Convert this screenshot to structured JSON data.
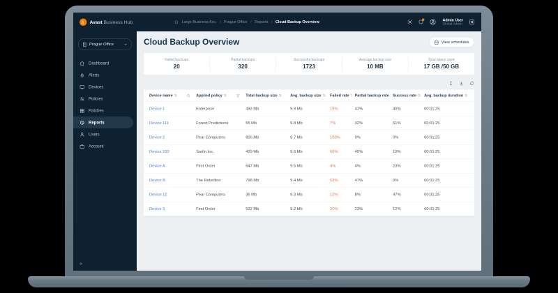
{
  "colors": {
    "navy": "#0d2130",
    "accent_orange": "#ff7800",
    "link_blue": "#4d80d8",
    "failed_rate_orange": "#e7714b",
    "main_bg": "#edf0f2"
  },
  "icons": {
    "sort_glyph": "⇅",
    "collapse_glyph": "«"
  },
  "topbar": {
    "brand_bold": "Avast",
    "brand_rest": "Business Hub",
    "breadcrumb_separator": "/",
    "breadcrumbs": [
      "Large Business Acc.",
      "Prague Office",
      "Reports",
      "Cloud Backup Overview"
    ],
    "user_name": "Admin User",
    "user_role": "Global Admin"
  },
  "sidebar": {
    "selector_value": "Prague Office",
    "items": [
      {
        "label": "Dashboard",
        "icon": "home",
        "active": false
      },
      {
        "label": "Alerts",
        "icon": "bell",
        "active": false
      },
      {
        "label": "Devices",
        "icon": "monitor",
        "active": false
      },
      {
        "label": "Policies",
        "icon": "sliders",
        "active": false
      },
      {
        "label": "Patches",
        "icon": "grid",
        "active": false
      },
      {
        "label": "Reports",
        "icon": "pie-chart",
        "active": true
      },
      {
        "label": "Users",
        "icon": "user",
        "active": false
      },
      {
        "label": "Account",
        "icon": "briefcase",
        "active": false
      }
    ]
  },
  "main": {
    "title": "Cloud Backup Overview",
    "view_schedules_label": "View schedules",
    "stats": [
      {
        "label": "Failed backups",
        "value": "20"
      },
      {
        "label": "Partial backups",
        "value": "320"
      },
      {
        "label": "Successful backups",
        "value": "1723"
      },
      {
        "label": "Average backup size",
        "value": "10 MB"
      },
      {
        "label": "Total space used",
        "value": "17 GB /50 GB"
      }
    ],
    "table": {
      "columns": [
        "Device name",
        "Applied policy",
        "Total backup size",
        "Avg. backup size",
        "Failed rate",
        "Partial backup rate",
        "Success rate",
        "Avg. backup duration"
      ],
      "rows": [
        [
          "Device 1",
          "Enterprise",
          "492 Mb",
          "9.9 Mb",
          "19%",
          "41%",
          "40%",
          "00:01:25"
        ],
        [
          "Device 111",
          "Forest Predictions",
          "55 Mb",
          "9.8 Mb",
          "7%",
          "32%",
          "61%",
          "00:01:25"
        ],
        [
          "Device 2",
          "Pear Computers",
          "816 Mb",
          "9.7 Mb",
          "100%",
          "0%",
          "0%",
          "00:01:25"
        ],
        [
          "Device 222",
          "Sarfin Inc.",
          "429 Mb",
          "9.6 Mb",
          "60%",
          "45%",
          "10%",
          "00:01:25"
        ],
        [
          "Device A",
          "First Order",
          "647 Mb",
          "9.5 Mb",
          "4%",
          "4%",
          "23%",
          "00:01:25"
        ],
        [
          "Device B",
          "The Rebellion",
          "798 Mb",
          "9.4 Mb",
          "53%",
          "47%",
          "0%",
          "00:01:25"
        ],
        [
          "Device 12",
          "Pear Computers",
          "36 Mb",
          "9.3 Mb",
          "12%",
          "8%",
          "47%",
          "00:01:25"
        ],
        [
          "Device 3",
          "First Order",
          "522 Mb",
          "9.2 Mb",
          "20%",
          "23%",
          "12%",
          "00:01:25"
        ]
      ]
    }
  }
}
